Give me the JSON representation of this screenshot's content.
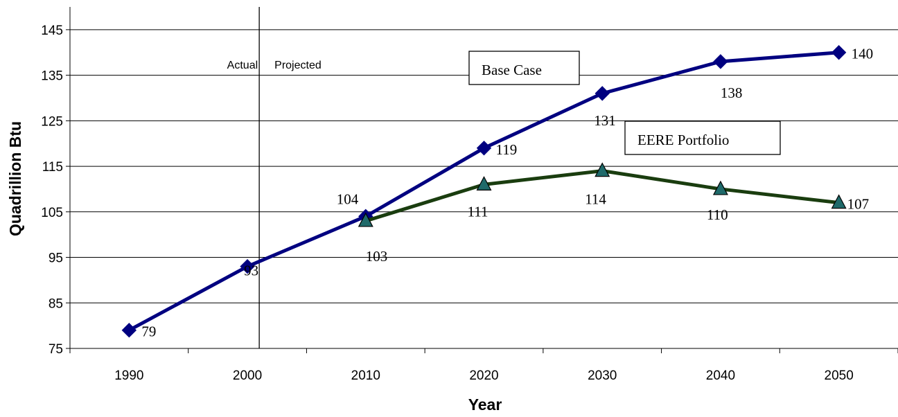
{
  "chart_data": {
    "type": "line",
    "xlabel": "Year",
    "ylabel": "Quadrillion Btu",
    "ylim": [
      75,
      150
    ],
    "yticks": [
      75,
      85,
      95,
      105,
      115,
      125,
      135,
      145
    ],
    "categories": [
      "1990",
      "2000",
      "2010",
      "2020",
      "2030",
      "2040",
      "2050"
    ],
    "grid": "horizontal",
    "divider": {
      "at": "2001",
      "left_label": "Actual",
      "right_label": "Projected"
    },
    "series": [
      {
        "name": "Base Case",
        "color": "#000080",
        "marker": "diamond",
        "x": [
          "1990",
          "2000",
          "2010",
          "2020",
          "2030",
          "2040",
          "2050"
        ],
        "values": [
          79,
          93,
          104,
          119,
          131,
          138,
          140
        ],
        "labels": [
          "79",
          "93",
          "104",
          "119",
          "131",
          "138",
          "140"
        ]
      },
      {
        "name": "EERE Portfolio",
        "color": "#1a3d0f",
        "marker_fill": "#1f6a6a",
        "marker": "triangle",
        "x": [
          "2010",
          "2020",
          "2030",
          "2040",
          "2050"
        ],
        "values": [
          103,
          111,
          114,
          110,
          107
        ],
        "labels": [
          "103",
          "111",
          "114",
          "110",
          "107"
        ]
      }
    ]
  }
}
